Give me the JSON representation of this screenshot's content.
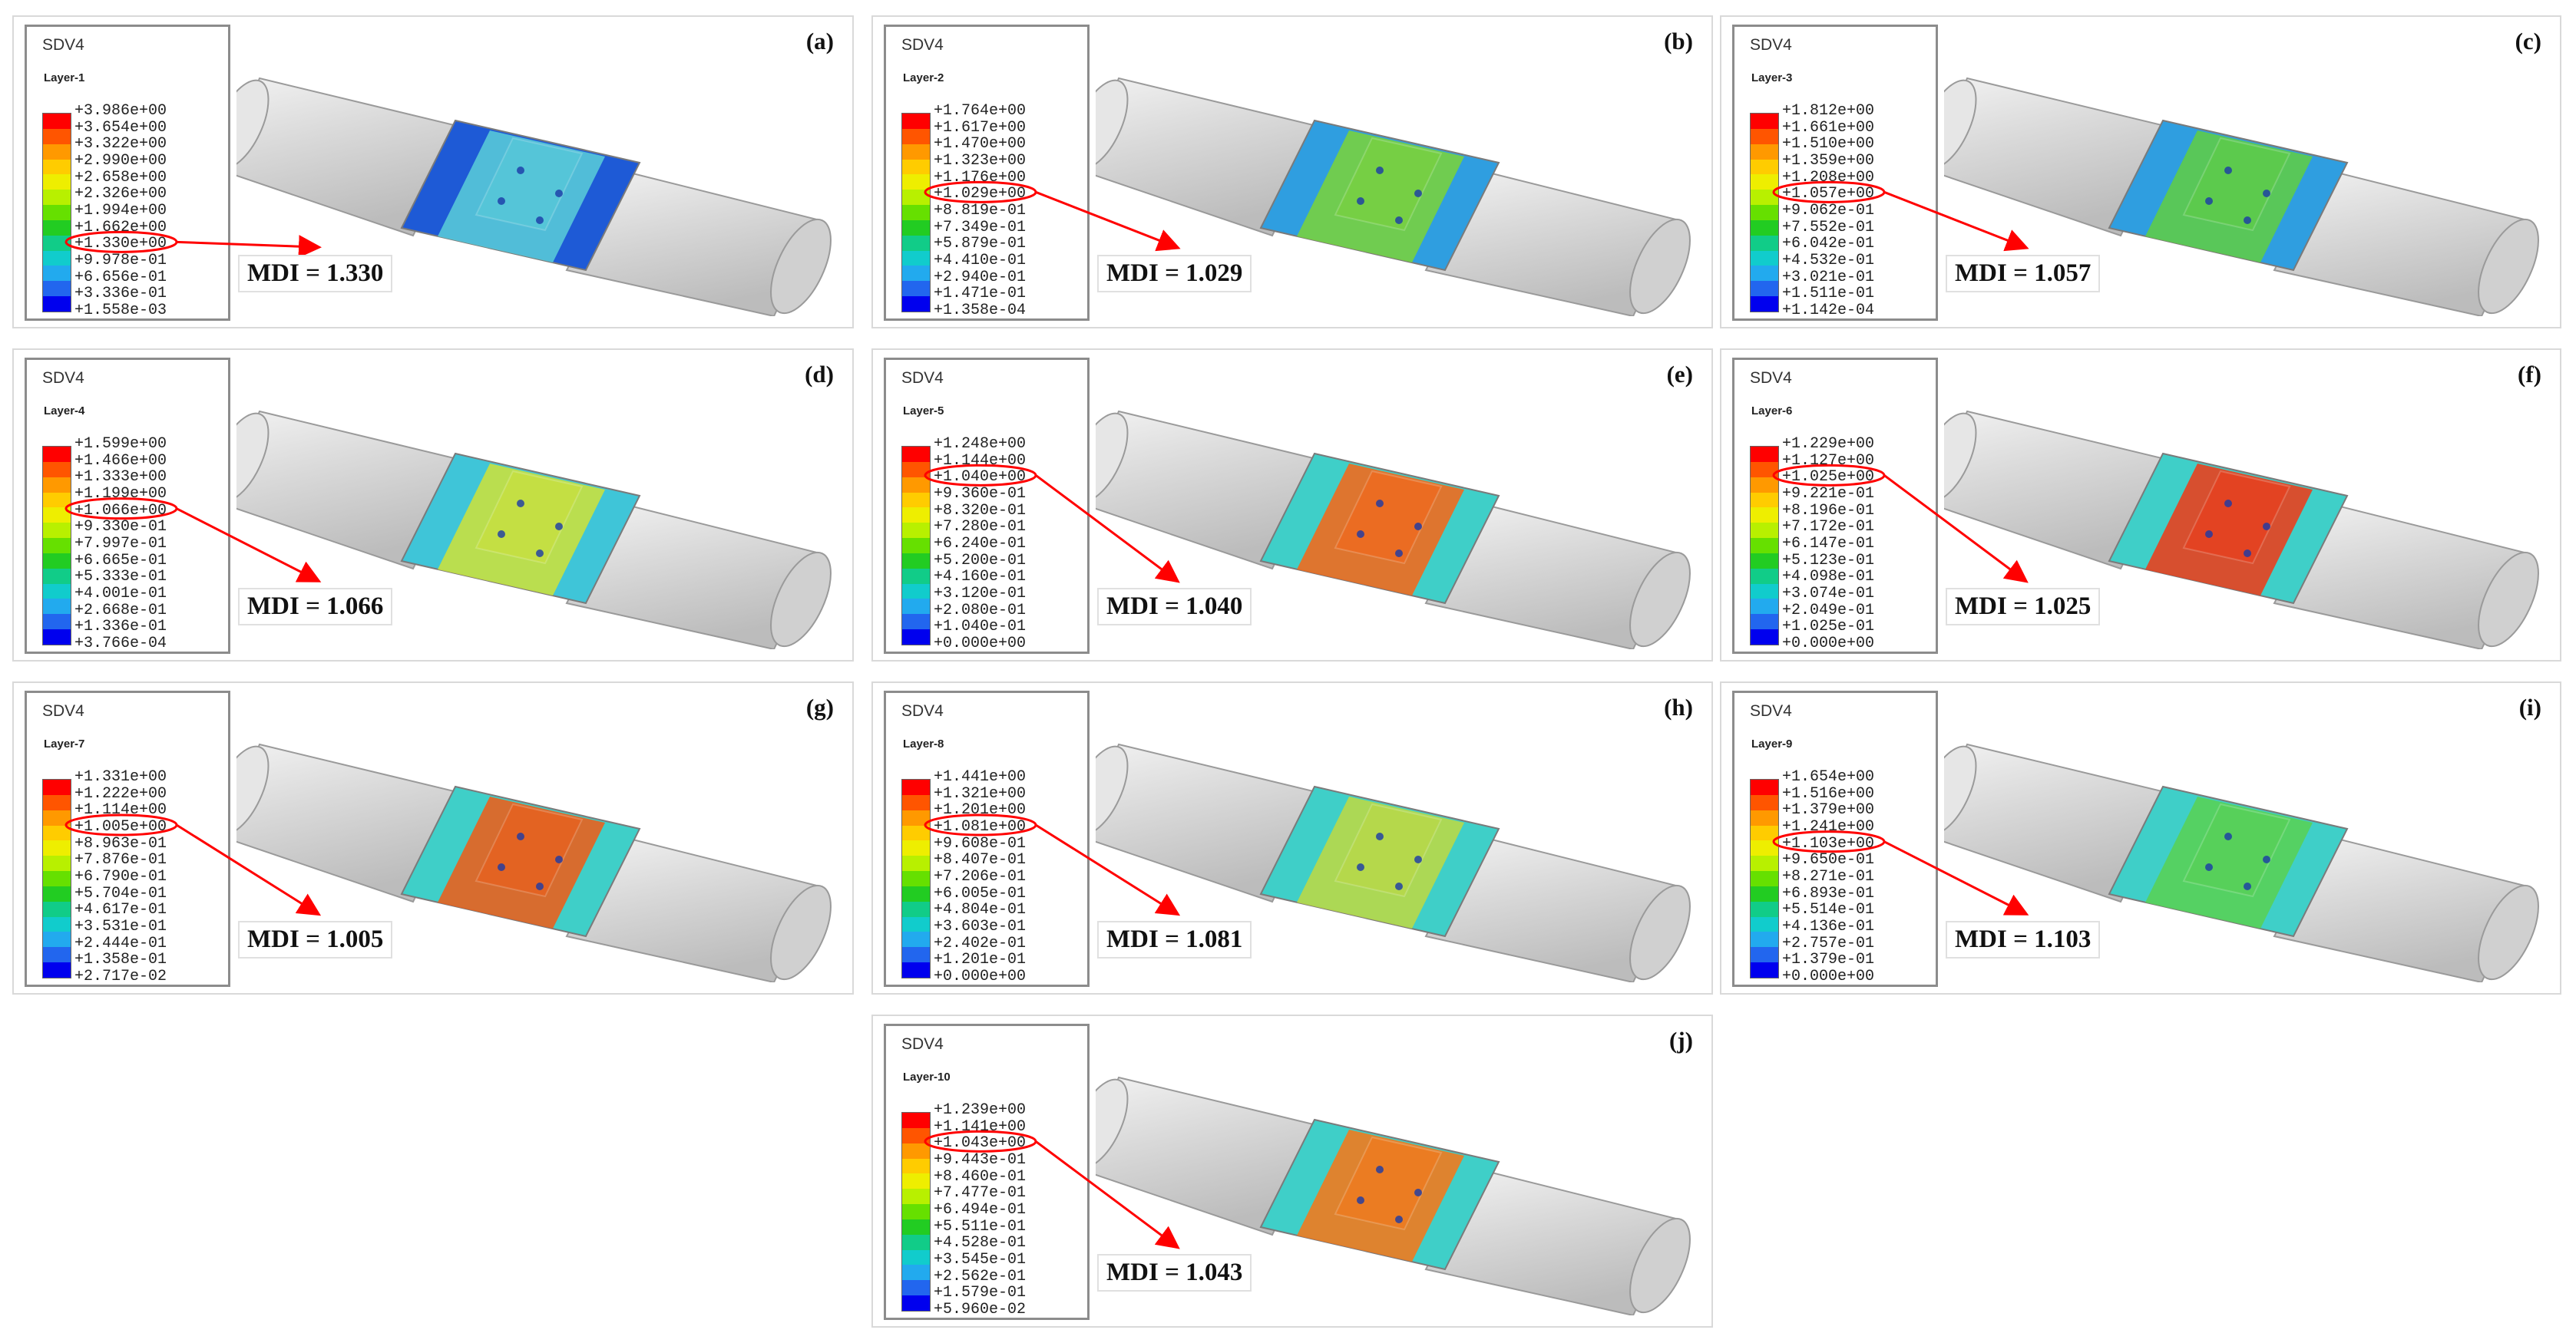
{
  "legend_title": "SDV4",
  "mdi_prefix": "MDI = ",
  "colors": {
    "scale": [
      "#ff0000",
      "#ff5500",
      "#ff9900",
      "#ffcc00",
      "#eeee00",
      "#b8f000",
      "#66e000",
      "#22cc22",
      "#11cc88",
      "#11cccc",
      "#22aaee",
      "#2266ee",
      "#0000ee"
    ],
    "tube": "#d9d9d9",
    "tube_shade": "#bcbcbc",
    "highlight": "#ff0000"
  },
  "panels": [
    {
      "label": "(a)",
      "layer": "Layer-1",
      "mdi": "1.330",
      "values": [
        "+3.986e+00",
        "+3.654e+00",
        "+3.322e+00",
        "+2.990e+00",
        "+2.658e+00",
        "+2.326e+00",
        "+1.994e+00",
        "+1.662e+00",
        "+1.330e+00",
        "+9.978e-01",
        "+6.656e-01",
        "+3.336e-01",
        "+1.558e-03"
      ],
      "highlight_index": 8,
      "band_color": "#1e5ad6",
      "inner_color": "#57c8d8"
    },
    {
      "label": "(b)",
      "layer": "Layer-2",
      "mdi": "1.029",
      "values": [
        "+1.764e+00",
        "+1.617e+00",
        "+1.470e+00",
        "+1.323e+00",
        "+1.176e+00",
        "+1.029e+00",
        "+8.819e-01",
        "+7.349e-01",
        "+5.879e-01",
        "+4.410e-01",
        "+2.940e-01",
        "+1.471e-01",
        "+1.358e-04"
      ],
      "highlight_index": 5,
      "band_color": "#2f9ee0",
      "inner_color": "#78d040"
    },
    {
      "label": "(c)",
      "layer": "Layer-3",
      "mdi": "1.057",
      "values": [
        "+1.812e+00",
        "+1.661e+00",
        "+1.510e+00",
        "+1.359e+00",
        "+1.208e+00",
        "+1.057e+00",
        "+9.062e-01",
        "+7.552e-01",
        "+6.042e-01",
        "+4.532e-01",
        "+3.021e-01",
        "+1.511e-01",
        "+1.142e-04"
      ],
      "highlight_index": 5,
      "band_color": "#2f9ee0",
      "inner_color": "#5ecb4a"
    },
    {
      "label": "(d)",
      "layer": "Layer-4",
      "mdi": "1.066",
      "values": [
        "+1.599e+00",
        "+1.466e+00",
        "+1.333e+00",
        "+1.199e+00",
        "+1.066e+00",
        "+9.330e-01",
        "+7.997e-01",
        "+6.665e-01",
        "+5.333e-01",
        "+4.001e-01",
        "+2.668e-01",
        "+1.336e-01",
        "+3.766e-04"
      ],
      "highlight_index": 4,
      "band_color": "#3fc5d8",
      "inner_color": "#c8e040"
    },
    {
      "label": "(e)",
      "layer": "Layer-5",
      "mdi": "1.040",
      "values": [
        "+1.248e+00",
        "+1.144e+00",
        "+1.040e+00",
        "+9.360e-01",
        "+8.320e-01",
        "+7.280e-01",
        "+6.240e-01",
        "+5.200e-01",
        "+4.160e-01",
        "+3.120e-01",
        "+2.080e-01",
        "+1.040e-01",
        "+0.000e+00"
      ],
      "highlight_index": 2,
      "band_color": "#3fcfc8",
      "inner_color": "#f06a1e"
    },
    {
      "label": "(f)",
      "layer": "Layer-6",
      "mdi": "1.025",
      "values": [
        "+1.229e+00",
        "+1.127e+00",
        "+1.025e+00",
        "+9.221e-01",
        "+8.196e-01",
        "+7.172e-01",
        "+6.147e-01",
        "+5.123e-01",
        "+4.098e-01",
        "+3.074e-01",
        "+2.049e-01",
        "+1.025e-01",
        "+0.000e+00"
      ],
      "highlight_index": 2,
      "band_color": "#3fcfc8",
      "inner_color": "#e8401e"
    },
    {
      "label": "(g)",
      "layer": "Layer-7",
      "mdi": "1.005",
      "values": [
        "+1.331e+00",
        "+1.222e+00",
        "+1.114e+00",
        "+1.005e+00",
        "+8.963e-01",
        "+7.876e-01",
        "+6.790e-01",
        "+5.704e-01",
        "+4.617e-01",
        "+3.531e-01",
        "+2.444e-01",
        "+1.358e-01",
        "+2.717e-02"
      ],
      "highlight_index": 3,
      "band_color": "#3fcfc8",
      "inner_color": "#e8601e"
    },
    {
      "label": "(h)",
      "layer": "Layer-8",
      "mdi": "1.081",
      "values": [
        "+1.441e+00",
        "+1.321e+00",
        "+1.201e+00",
        "+1.081e+00",
        "+9.608e-01",
        "+8.407e-01",
        "+7.206e-01",
        "+6.005e-01",
        "+4.804e-01",
        "+3.603e-01",
        "+2.402e-01",
        "+1.201e-01",
        "+0.000e+00"
      ],
      "highlight_index": 3,
      "band_color": "#3fcfc8",
      "inner_color": "#b8d848"
    },
    {
      "label": "(i)",
      "layer": "Layer-9",
      "mdi": "1.103",
      "values": [
        "+1.654e+00",
        "+1.516e+00",
        "+1.379e+00",
        "+1.241e+00",
        "+1.103e+00",
        "+9.650e-01",
        "+8.271e-01",
        "+6.893e-01",
        "+5.514e-01",
        "+4.136e-01",
        "+2.757e-01",
        "+1.379e-01",
        "+0.000e+00"
      ],
      "highlight_index": 4,
      "band_color": "#3fcfc8",
      "inner_color": "#58d058"
    },
    {
      "label": "(j)",
      "layer": "Layer-10",
      "mdi": "1.043",
      "values": [
        "+1.239e+00",
        "+1.141e+00",
        "+1.043e+00",
        "+9.443e-01",
        "+8.460e-01",
        "+7.477e-01",
        "+6.494e-01",
        "+5.511e-01",
        "+4.528e-01",
        "+3.545e-01",
        "+2.562e-01",
        "+1.579e-01",
        "+5.960e-02"
      ],
      "highlight_index": 2,
      "band_color": "#3fcfc8",
      "inner_color": "#f07a1e"
    }
  ]
}
